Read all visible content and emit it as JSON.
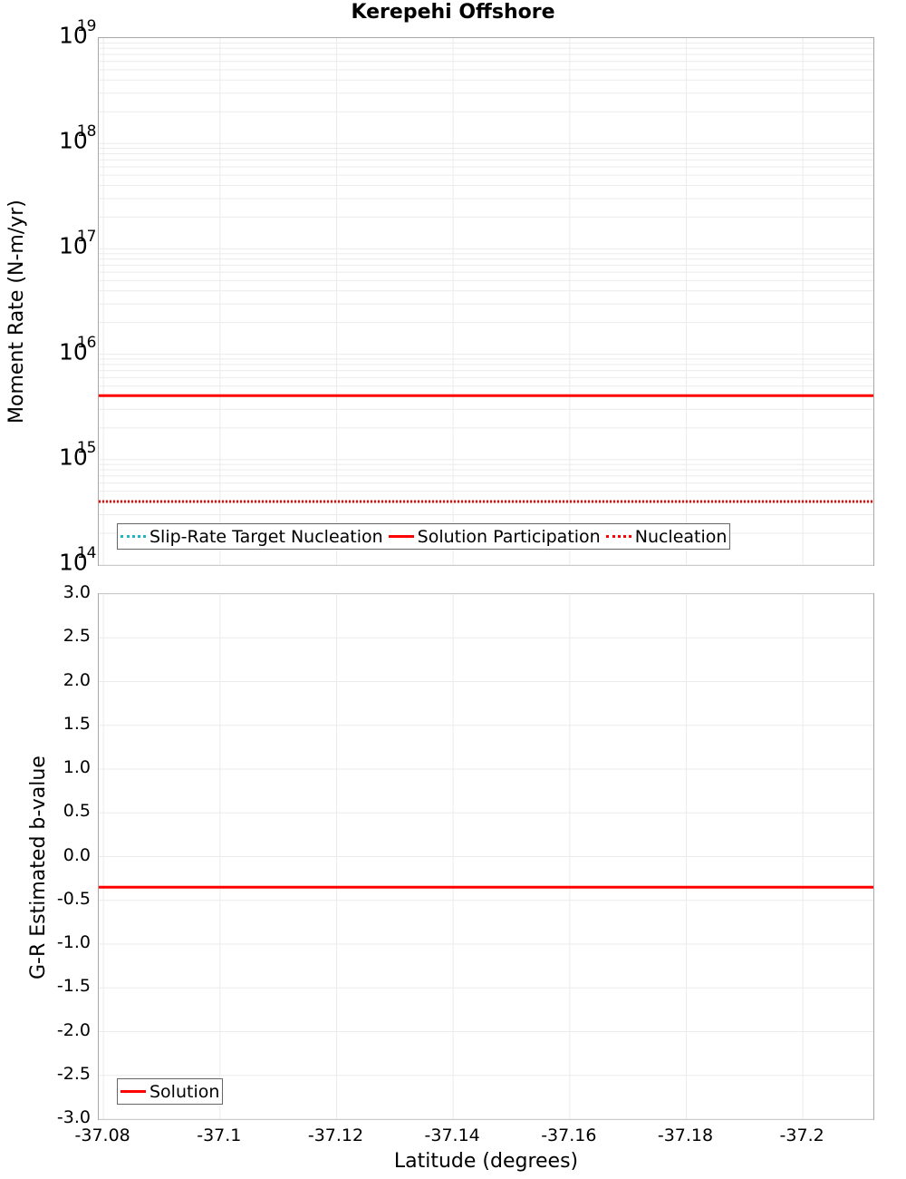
{
  "title": "Kerepehi Offshore",
  "colors": {
    "solution": "#ff0000",
    "nucleation": "#ff0000",
    "slip_rate_target": "#1fb5c0",
    "grid": "#ebebeb",
    "frame": "#a8a8a8"
  },
  "top_panel": {
    "ylabel": "Moment Rate (N-m/yr)",
    "ytick_base": "10",
    "ytick_exponents": [
      "19",
      "18",
      "17",
      "16",
      "15",
      "14"
    ],
    "legend": [
      {
        "label": "Slip-Rate Target Nucleation",
        "style": "dotted",
        "color": "#1fb5c0"
      },
      {
        "label": "Solution Participation",
        "style": "solid",
        "color": "#ff0000"
      },
      {
        "label": "Nucleation",
        "style": "dotted",
        "color": "#ff0000"
      }
    ]
  },
  "bottom_panel": {
    "ylabel": "G-R Estimated b-value",
    "yticks": [
      "3.0",
      "2.5",
      "2.0",
      "1.5",
      "1.0",
      "0.5",
      "0.0",
      "-0.5",
      "-1.0",
      "-1.5",
      "-2.0",
      "-2.5",
      "-3.0"
    ],
    "legend": [
      {
        "label": "Solution",
        "style": "solid",
        "color": "#ff0000"
      }
    ]
  },
  "xaxis": {
    "label": "Latitude (degrees)",
    "ticks": [
      "-37.08",
      "-37.1",
      "-37.12",
      "-37.14",
      "-37.16",
      "-37.18",
      "-37.2"
    ]
  },
  "chart_data": [
    {
      "type": "line",
      "title": "Kerepehi Offshore",
      "xlabel": "Latitude (degrees)",
      "ylabel": "Moment Rate (N-m/yr)",
      "yscale": "log",
      "xlim": [
        -37.0792,
        -37.2121
      ],
      "ylim": [
        100000000000000.0,
        1e+19
      ],
      "grid": true,
      "legend_position": "lower left",
      "x": [
        -37.0792,
        -37.1458,
        -37.2121
      ],
      "series": [
        {
          "name": "Slip-Rate Target Nucleation",
          "style": "dotted",
          "color": "#1fb5c0",
          "values": [
            400000000000000.0,
            400000000000000.0,
            400000000000000.0
          ]
        },
        {
          "name": "Solution Participation",
          "style": "solid",
          "color": "#ff0000",
          "values": [
            4050000000000000.0,
            4050000000000000.0,
            4050000000000000.0
          ]
        },
        {
          "name": "Nucleation",
          "style": "dotted",
          "color": "#ff0000",
          "values": [
            400000000000000.0,
            400000000000000.0,
            400000000000000.0
          ]
        }
      ]
    },
    {
      "type": "line",
      "xlabel": "Latitude (degrees)",
      "ylabel": "G-R Estimated b-value",
      "xlim": [
        -37.0792,
        -37.2121
      ],
      "ylim": [
        -3.0,
        3.0
      ],
      "grid": true,
      "legend_position": "lower left",
      "x": [
        -37.0792,
        -37.1458,
        -37.2121
      ],
      "series": [
        {
          "name": "Solution",
          "style": "solid",
          "color": "#ff0000",
          "values": [
            -0.35,
            -0.35,
            -0.35
          ]
        }
      ]
    }
  ]
}
